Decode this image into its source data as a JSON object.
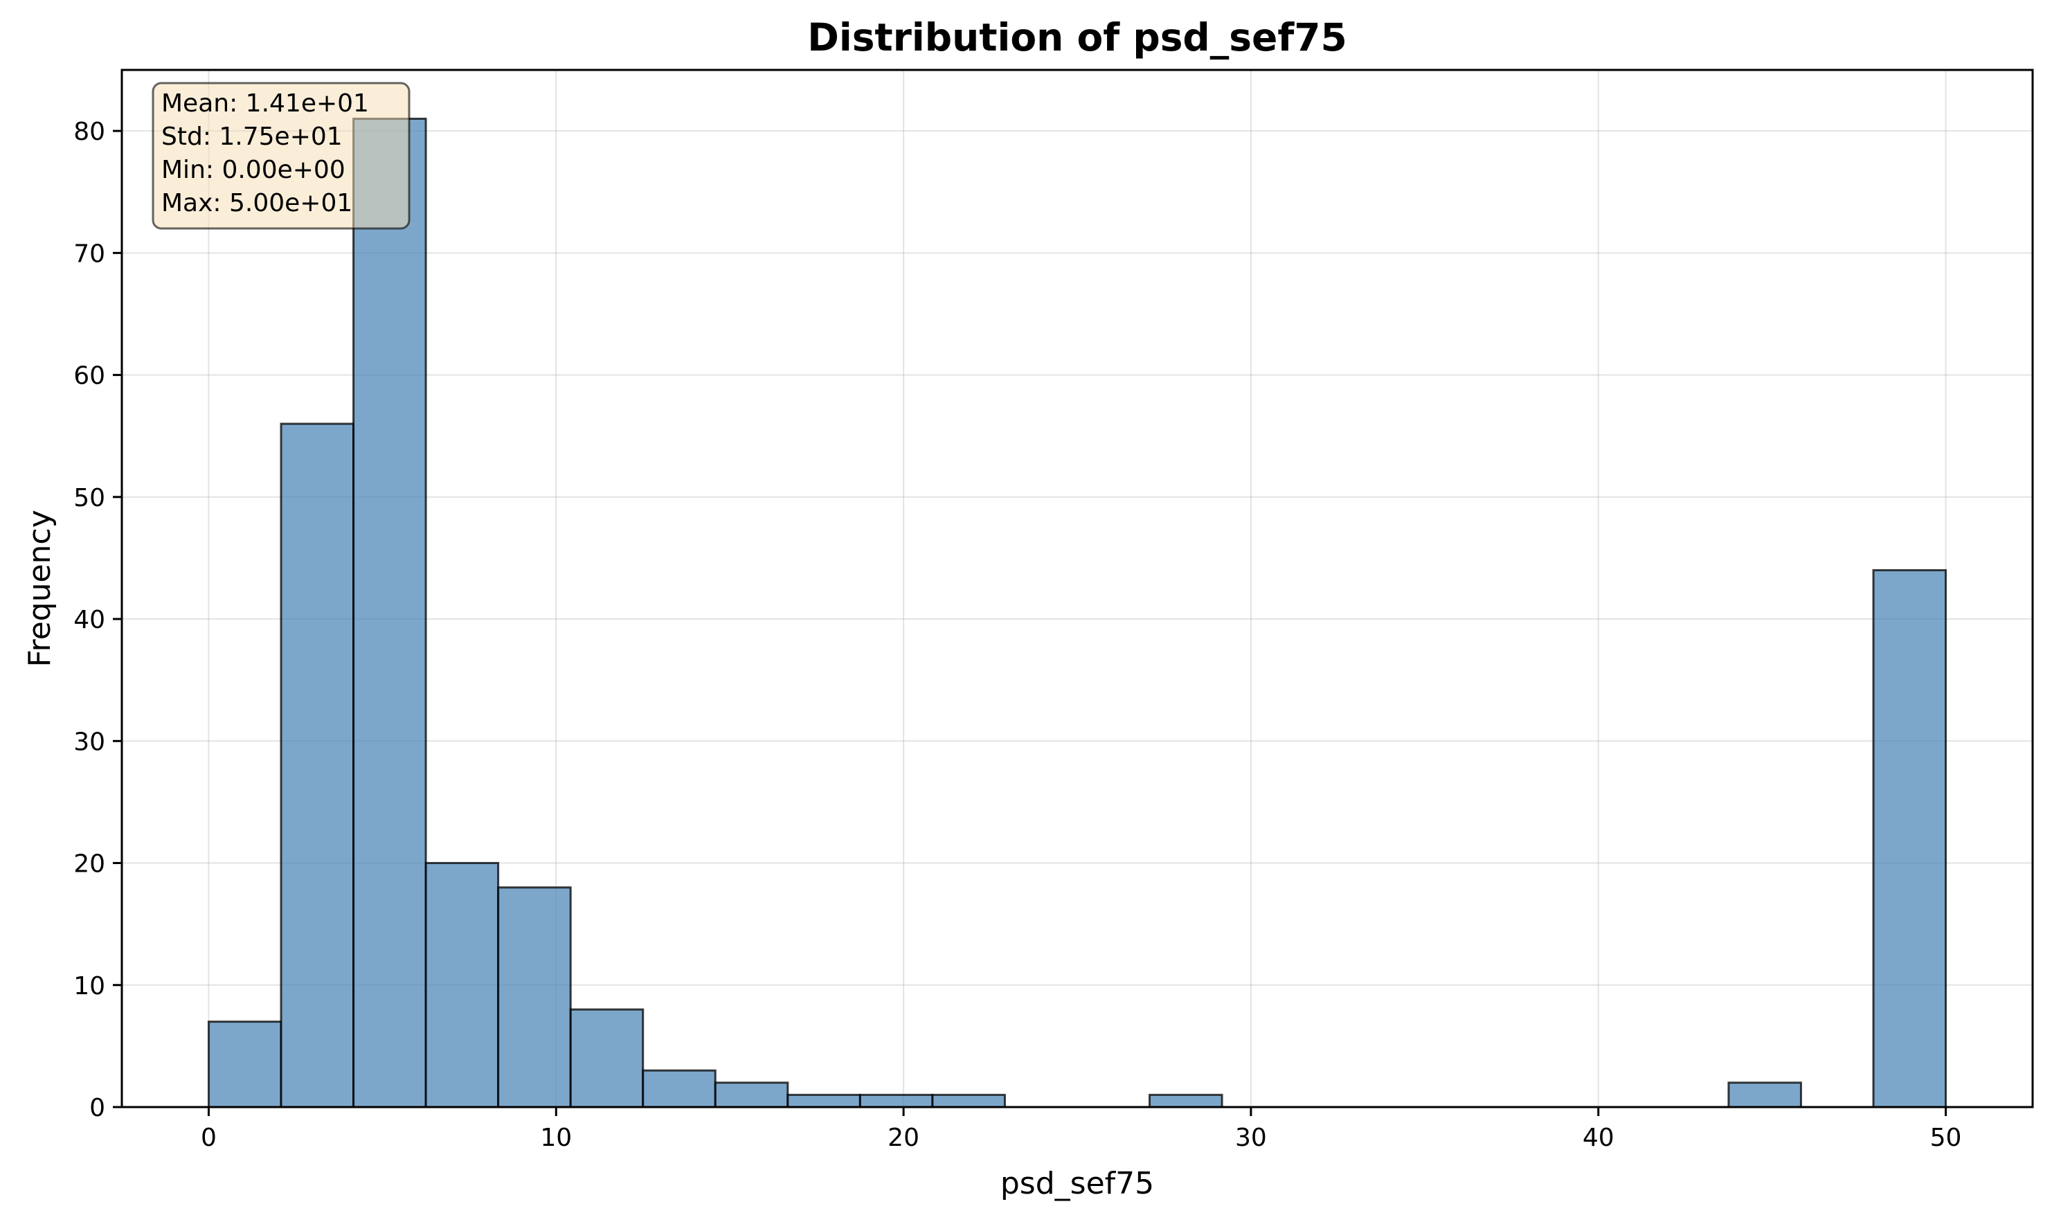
{
  "chart_data": {
    "type": "bar",
    "title": "Distribution of psd_sef75",
    "xlabel": "psd_sef75",
    "ylabel": "Frequency",
    "xlim": [
      -2.5,
      52.5
    ],
    "ylim": [
      0,
      85
    ],
    "xticks": [
      0,
      10,
      20,
      30,
      40,
      50
    ],
    "yticks": [
      0,
      10,
      20,
      30,
      40,
      50,
      60,
      70,
      80
    ],
    "grid": true,
    "bin_edges": [
      0,
      2.083,
      4.167,
      6.25,
      8.333,
      10.417,
      12.5,
      14.583,
      16.667,
      18.75,
      20.833,
      22.917,
      25,
      27.083,
      29.167,
      31.25,
      33.333,
      35.417,
      37.5,
      39.583,
      41.667,
      43.75,
      45.833,
      47.917,
      50
    ],
    "counts": [
      7,
      56,
      81,
      20,
      18,
      8,
      3,
      2,
      1,
      1,
      1,
      0,
      0,
      1,
      0,
      0,
      0,
      0,
      0,
      0,
      0,
      2,
      0,
      44
    ],
    "color": "#4682b4",
    "stats_box": {
      "placement": "top-left",
      "lines": [
        "Mean: 1.41e+01",
        "Std: 1.75e+01",
        "Min: 0.00e+00",
        "Max: 5.00e+01"
      ],
      "background": "#f5deb3"
    }
  }
}
